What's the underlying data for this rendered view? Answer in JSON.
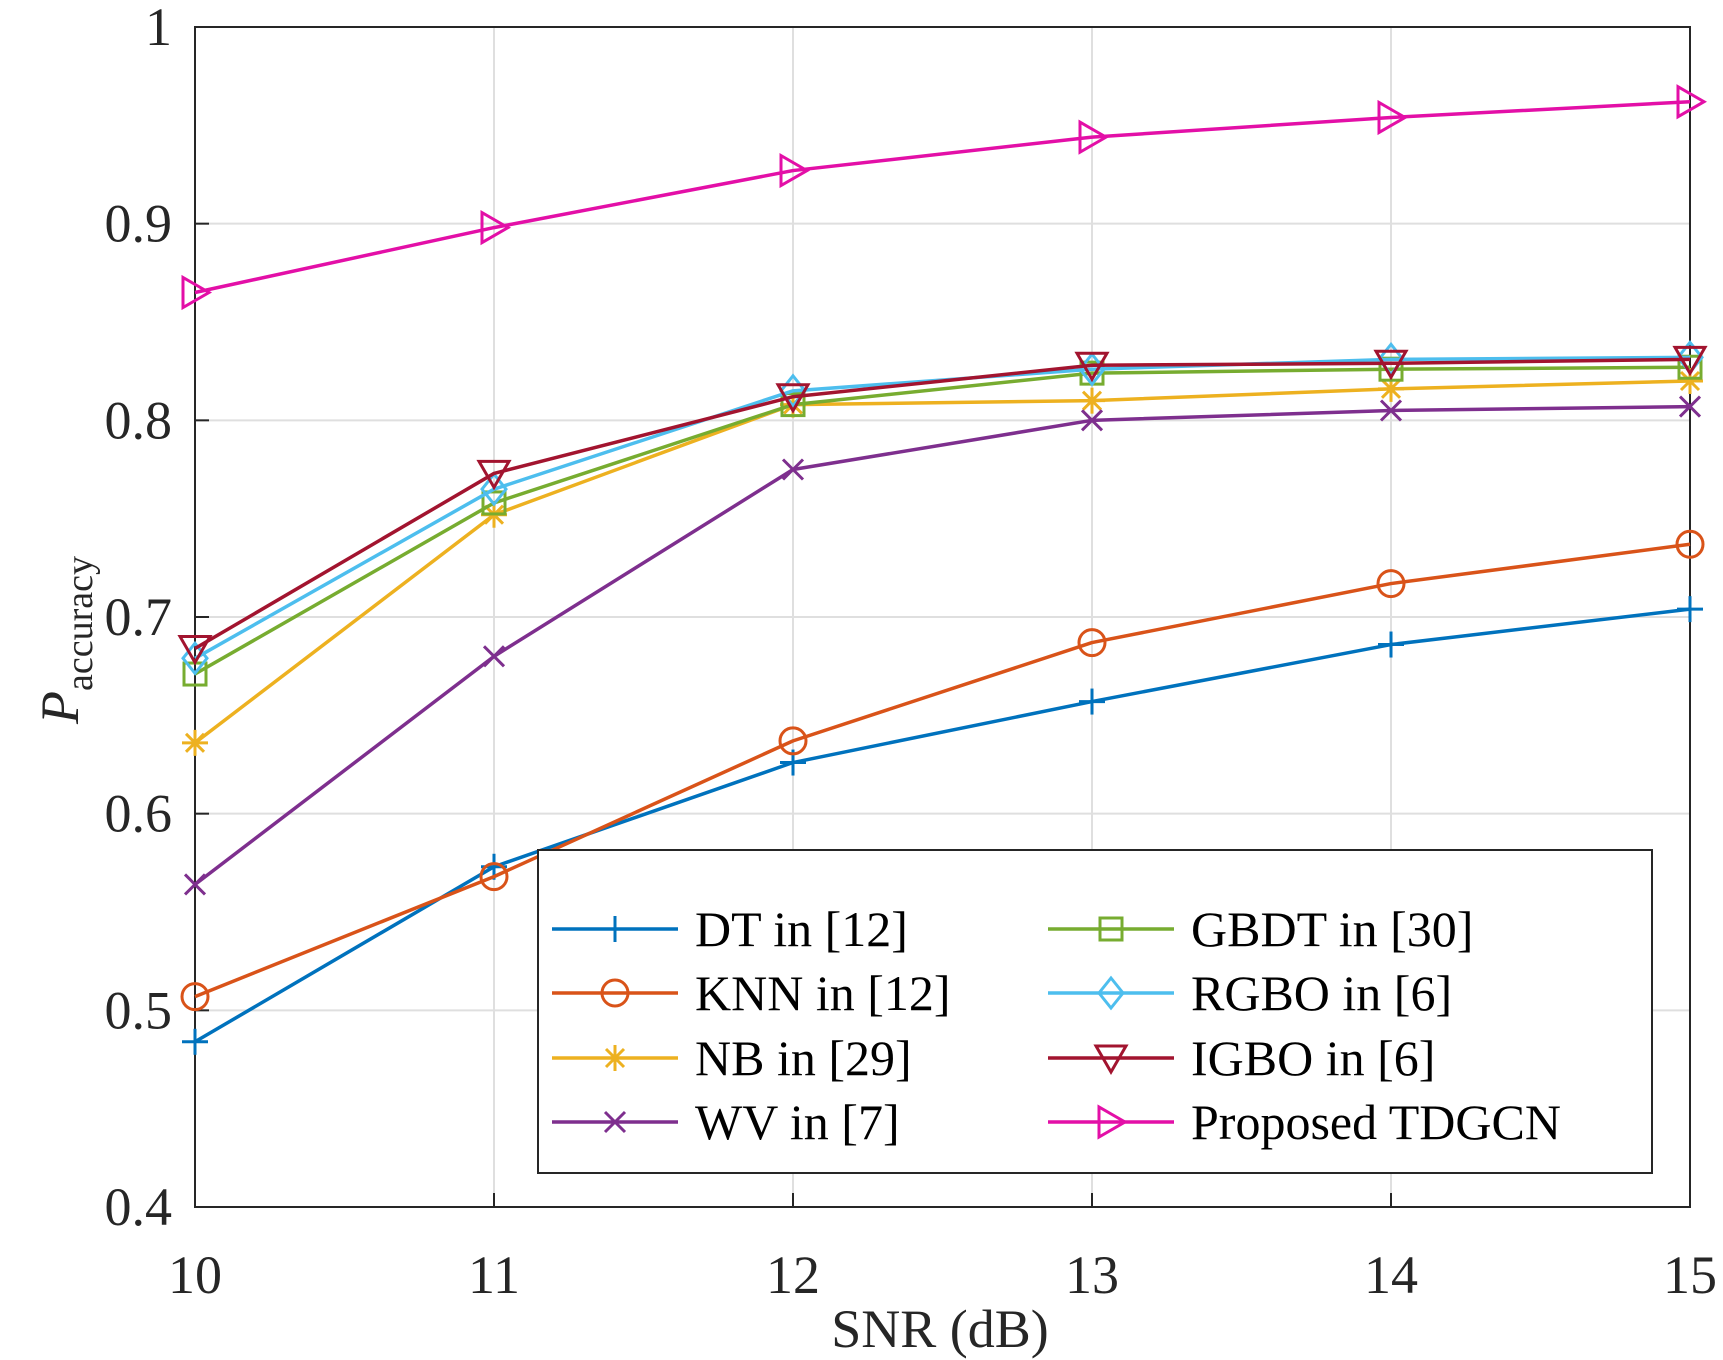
{
  "chart_data": {
    "type": "line",
    "title": "",
    "xlabel": "SNR (dB)",
    "ylabel_main": "P",
    "ylabel_sub": "accuracy",
    "x": [
      10,
      11,
      12,
      13,
      14,
      15
    ],
    "xlim": [
      10,
      15
    ],
    "ylim": [
      0.4,
      1.0
    ],
    "xticks": [
      "10",
      "11",
      "12",
      "13",
      "14",
      "15"
    ],
    "yticks": [
      "0.4",
      "0.5",
      "0.6",
      "0.7",
      "0.8",
      "0.9",
      "1"
    ],
    "ytick_values": [
      0.4,
      0.5,
      0.6,
      0.7,
      0.8,
      0.9,
      1.0
    ],
    "grid": true,
    "legend_position": "bottom-right",
    "series": [
      {
        "name": "DT in [12]",
        "color": "#0072BD",
        "marker": "plus",
        "values": [
          0.484,
          0.573,
          0.626,
          0.657,
          0.686,
          0.704
        ]
      },
      {
        "name": "KNN in [12]",
        "color": "#D95319",
        "marker": "circle",
        "values": [
          0.507,
          0.568,
          0.637,
          0.687,
          0.717,
          0.737
        ]
      },
      {
        "name": "NB in [29]",
        "color": "#EDB120",
        "marker": "asterisk",
        "values": [
          0.636,
          0.752,
          0.808,
          0.81,
          0.816,
          0.82
        ]
      },
      {
        "name": "WV in [7]",
        "color": "#7E2F8E",
        "marker": "x",
        "values": [
          0.564,
          0.68,
          0.775,
          0.8,
          0.805,
          0.807
        ]
      },
      {
        "name": "GBDT in [30]",
        "color": "#77AC30",
        "marker": "square",
        "values": [
          0.671,
          0.758,
          0.808,
          0.824,
          0.826,
          0.827
        ]
      },
      {
        "name": "RGBO in [6]",
        "color": "#4DBEEE",
        "marker": "diamond",
        "values": [
          0.679,
          0.765,
          0.815,
          0.826,
          0.831,
          0.832
        ]
      },
      {
        "name": "IGBO in [6]",
        "color": "#A2142F",
        "marker": "triangle-down",
        "values": [
          0.684,
          0.773,
          0.812,
          0.828,
          0.829,
          0.831
        ]
      },
      {
        "name": "Proposed TDGCN",
        "color": "#E30FA7",
        "marker": "triangle-right",
        "values": [
          0.865,
          0.898,
          0.927,
          0.944,
          0.954,
          0.962
        ]
      }
    ]
  }
}
